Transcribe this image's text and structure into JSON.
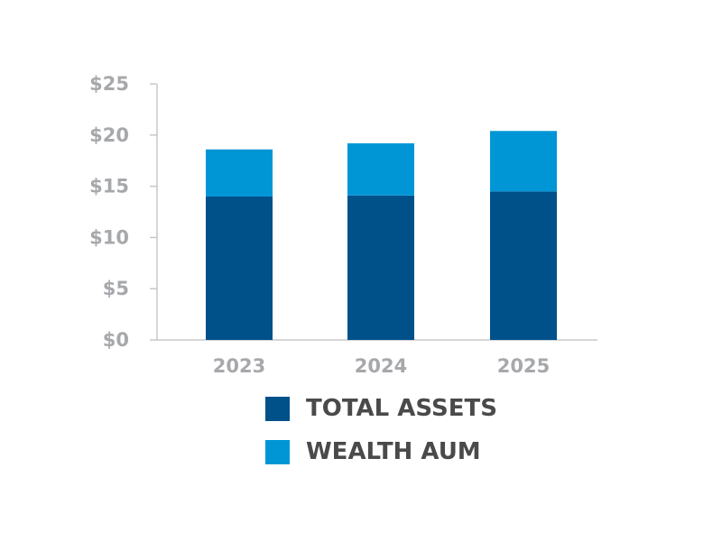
{
  "chart_data": {
    "type": "bar",
    "stacked": true,
    "categories": [
      "2023",
      "2024",
      "2025"
    ],
    "series": [
      {
        "name": "TOTAL ASSETS",
        "color": "#00508a",
        "values": [
          14.0,
          14.1,
          14.5
        ]
      },
      {
        "name": "WEALTH AUM",
        "color": "#0096d6",
        "values": [
          4.6,
          5.1,
          5.9
        ]
      }
    ],
    "title": "",
    "xlabel": "",
    "ylabel": "",
    "ylim": [
      0,
      25
    ],
    "y_ticks": [
      {
        "value": 0,
        "label": "$0"
      },
      {
        "value": 5,
        "label": "$5"
      },
      {
        "value": 10,
        "label": "$10"
      },
      {
        "value": 15,
        "label": "$15"
      },
      {
        "value": 20,
        "label": "$20"
      },
      {
        "value": 25,
        "label": "$25"
      }
    ],
    "grid": false,
    "legend_position": "bottom-center",
    "axis_color": "#c8c8c8"
  }
}
